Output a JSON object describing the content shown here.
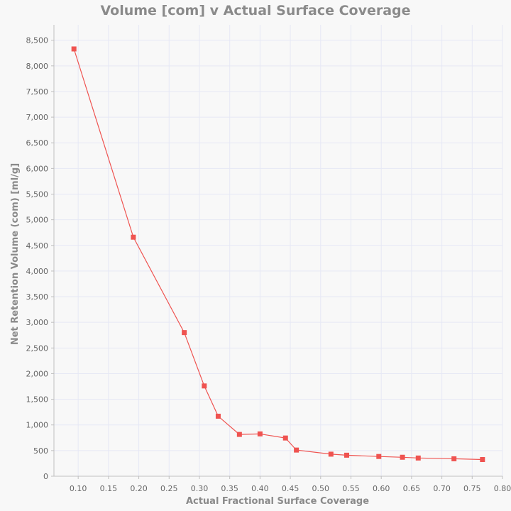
{
  "chart_data": {
    "type": "line",
    "title": "Volume [com] v Actual Surface Coverage",
    "xlabel": "Actual Fractional Surface Coverage",
    "ylabel": "Net Retention Volume (com) [ml/g]",
    "xlim": [
      0.06,
      0.8
    ],
    "ylim": [
      0,
      8800
    ],
    "x_ticks": [
      0.1,
      0.15,
      0.2,
      0.25,
      0.3,
      0.35,
      0.4,
      0.45,
      0.5,
      0.55,
      0.6,
      0.65,
      0.7,
      0.75,
      0.8
    ],
    "x_tick_labels": [
      "0.10",
      "0.15",
      "0.20",
      "0.25",
      "0.30",
      "0.35",
      "0.40",
      "0.45",
      "0.50",
      "0.55",
      "0.60",
      "0.65",
      "0.70",
      "0.75",
      "0.80"
    ],
    "y_ticks": [
      0,
      500,
      1000,
      1500,
      2000,
      2500,
      3000,
      3500,
      4000,
      4500,
      5000,
      5500,
      6000,
      6500,
      7000,
      7500,
      8000,
      8500
    ],
    "y_tick_labels": [
      "0",
      "500",
      "1,000",
      "1,500",
      "2,000",
      "2,500",
      "3,000",
      "3,500",
      "4,000",
      "4,500",
      "5,000",
      "5,500",
      "6,000",
      "6,500",
      "7,000",
      "7,500",
      "8,000",
      "8,500"
    ],
    "grid": true,
    "series": [
      {
        "color": "#ef5350",
        "marker": "square",
        "x": [
          0.093,
          0.191,
          0.275,
          0.308,
          0.331,
          0.366,
          0.4,
          0.442,
          0.46,
          0.517,
          0.543,
          0.596,
          0.635,
          0.661,
          0.72,
          0.767
        ],
        "y": [
          8330,
          4660,
          2800,
          1760,
          1170,
          815,
          825,
          745,
          510,
          430,
          410,
          385,
          370,
          355,
          340,
          325
        ]
      }
    ]
  }
}
